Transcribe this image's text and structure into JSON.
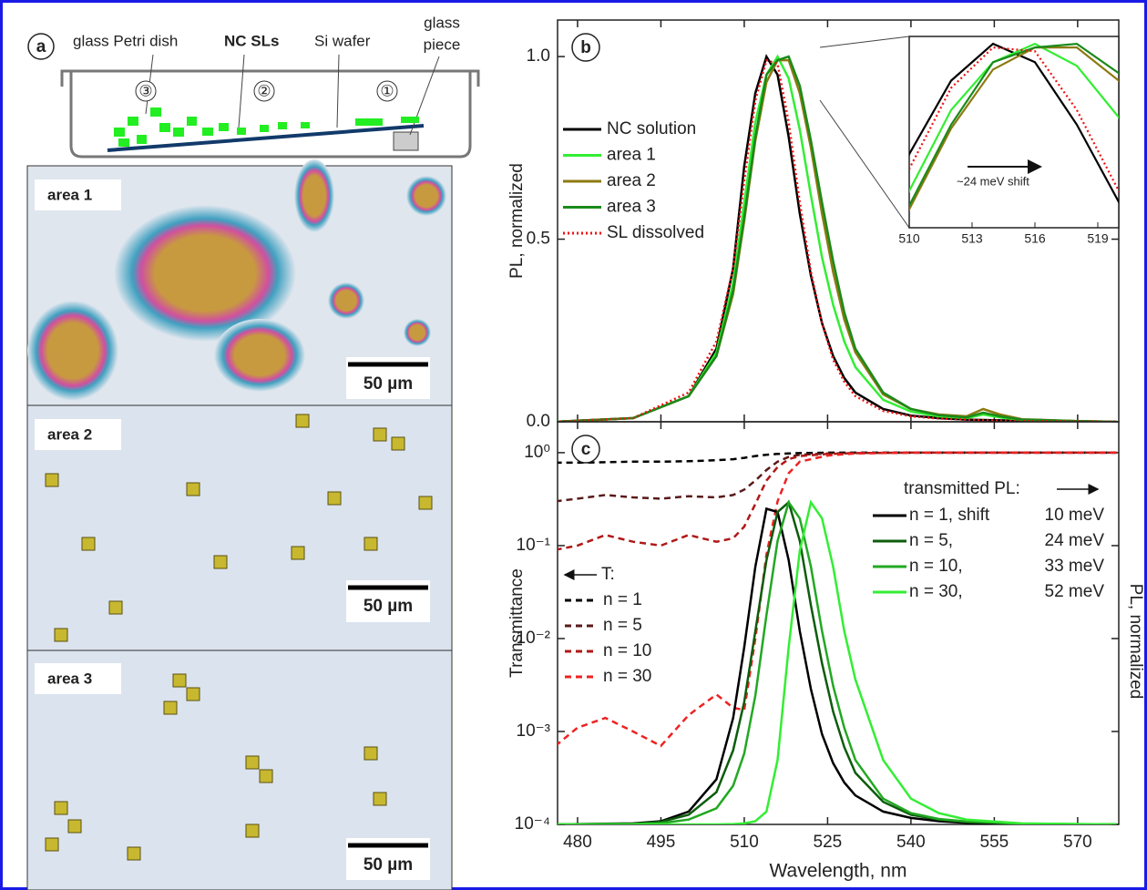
{
  "panel_a": {
    "label": "a",
    "schematic": {
      "glass_petri_dish": "glass Petri dish",
      "nc_sls": "NC SLs",
      "si_wafer": "Si wafer",
      "glass_piece": [
        "glass",
        "piece"
      ],
      "zones": [
        "③",
        "②",
        "①"
      ]
    },
    "images": [
      {
        "label": "area 1",
        "scale_bar": "50 µm"
      },
      {
        "label": "area 2",
        "scale_bar": "50 µm"
      },
      {
        "label": "area 3",
        "scale_bar": "50 µm"
      }
    ]
  },
  "chart_data": [
    {
      "type": "line",
      "panel": "b",
      "ylabel": "PL, normalized",
      "xlim": [
        476.4,
        577.4
      ],
      "xticks": [
        480,
        495,
        510,
        525,
        540,
        555,
        570
      ],
      "ylim": [
        0,
        1.1
      ],
      "yticks": [
        {
          "value": 0,
          "label": "0.0"
        },
        0.5,
        {
          "value": 1,
          "label": "1.0"
        }
      ],
      "legend": "upper left",
      "x": [
        476,
        490,
        500,
        505,
        508,
        510,
        512,
        514,
        516,
        518,
        520,
        522,
        524,
        526,
        528,
        530,
        535,
        540,
        545,
        550,
        553,
        556,
        560,
        570,
        577
      ],
      "series": [
        {
          "name": "NC solution",
          "color": "#000000",
          "dash": "solid",
          "values": [
            0,
            0.01,
            0.07,
            0.2,
            0.42,
            0.7,
            0.9,
            1.0,
            0.95,
            0.78,
            0.57,
            0.4,
            0.27,
            0.18,
            0.12,
            0.08,
            0.035,
            0.017,
            0.01,
            0.006,
            0.005,
            0.004,
            0.003,
            0.001,
            0
          ]
        },
        {
          "name": "area 1",
          "color": "#33ee33",
          "dash": "solid",
          "values": [
            0,
            0.01,
            0.07,
            0.19,
            0.38,
            0.6,
            0.82,
            0.95,
            1.0,
            0.94,
            0.8,
            0.62,
            0.45,
            0.32,
            0.22,
            0.15,
            0.06,
            0.028,
            0.015,
            0.01,
            0.02,
            0.012,
            0.005,
            0.002,
            0
          ]
        },
        {
          "name": "area 2",
          "color": "#8c7a10",
          "dash": "solid",
          "values": [
            0,
            0.01,
            0.07,
            0.18,
            0.35,
            0.55,
            0.77,
            0.93,
            0.99,
            0.99,
            0.9,
            0.75,
            0.57,
            0.41,
            0.28,
            0.19,
            0.075,
            0.035,
            0.02,
            0.015,
            0.035,
            0.02,
            0.007,
            0.002,
            0
          ]
        },
        {
          "name": "area 3",
          "color": "#1a8a1a",
          "dash": "solid",
          "values": [
            0,
            0.01,
            0.07,
            0.18,
            0.36,
            0.56,
            0.78,
            0.95,
            0.99,
            1.0,
            0.92,
            0.77,
            0.6,
            0.44,
            0.3,
            0.2,
            0.08,
            0.035,
            0.018,
            0.012,
            0.025,
            0.015,
            0.006,
            0.002,
            0
          ]
        },
        {
          "name": "SL dissolved",
          "color": "#ee1111",
          "dash": "dotted",
          "values": [
            0,
            0.01,
            0.08,
            0.22,
            0.42,
            0.66,
            0.88,
            0.99,
            0.98,
            0.82,
            0.6,
            0.41,
            0.27,
            0.17,
            0.11,
            0.07,
            0.03,
            0.015,
            0.009,
            0.006,
            0.004,
            0.003,
            0.002,
            0.001,
            0
          ]
        }
      ],
      "inset": {
        "xlim": [
          510,
          520
        ],
        "xticks": [
          510,
          513,
          516,
          519
        ],
        "ylim": [
          0.5,
          1.02
        ],
        "annotation": "~24 meV shift"
      }
    },
    {
      "type": "line",
      "panel": "c",
      "xlabel": "Wavelength, nm",
      "ylabel": "Transmittance",
      "y2label": "PL, normalized",
      "log_y": true,
      "xlim": [
        476.4,
        577.4
      ],
      "xticks": [
        480,
        495,
        510,
        525,
        540,
        555,
        570
      ],
      "ylim": [
        0.0001,
        2.15
      ],
      "yticks": [
        {
          "value": 0.0001,
          "label": "10⁻⁴"
        },
        {
          "value": 0.001,
          "label": "10⁻³"
        },
        {
          "value": 0.01,
          "label": "10⁻²"
        },
        {
          "value": 0.1,
          "label": "10⁻¹"
        },
        {
          "value": 1,
          "label": "10⁰"
        }
      ],
      "y2lim": [
        0,
        1.25
      ],
      "t_legend_title": "T:",
      "pl_legend_title": "transmitted PL:",
      "series": [
        {
          "name": "n = 1",
          "color": "#000000",
          "dash": "dashed",
          "x": [
            476,
            480,
            485,
            490,
            495,
            500,
            505,
            508,
            510,
            512,
            514,
            516,
            518,
            520,
            525,
            530,
            540,
            577
          ],
          "values": [
            0.78,
            0.78,
            0.79,
            0.8,
            0.8,
            0.81,
            0.83,
            0.85,
            0.88,
            0.92,
            0.95,
            0.97,
            0.98,
            0.99,
            1.0,
            1.0,
            1.0,
            1.0
          ]
        },
        {
          "name": "n = 5",
          "color": "#5a1a1a",
          "dash": "dashed",
          "x": [
            476,
            480,
            485,
            490,
            495,
            500,
            505,
            508,
            510,
            512,
            514,
            516,
            518,
            520,
            525,
            530,
            540,
            577
          ],
          "values": [
            0.3,
            0.32,
            0.35,
            0.33,
            0.32,
            0.34,
            0.33,
            0.35,
            0.4,
            0.5,
            0.65,
            0.8,
            0.9,
            0.95,
            0.98,
            0.99,
            1.0,
            1.0
          ]
        },
        {
          "name": "n = 10",
          "color": "#b01818",
          "dash": "dashed",
          "x": [
            476,
            480,
            485,
            490,
            495,
            500,
            505,
            508,
            510,
            512,
            514,
            516,
            518,
            520,
            525,
            530,
            540,
            577
          ],
          "values": [
            0.09,
            0.1,
            0.13,
            0.11,
            0.1,
            0.13,
            0.11,
            0.12,
            0.16,
            0.28,
            0.5,
            0.7,
            0.85,
            0.92,
            0.97,
            0.99,
            1.0,
            1.0
          ]
        },
        {
          "name": "n = 30",
          "color": "#ee2222",
          "dash": "dashed",
          "x": [
            476,
            480,
            485,
            490,
            495,
            500,
            505,
            508,
            510,
            512,
            514,
            516,
            518,
            520,
            525,
            530,
            540,
            577
          ],
          "values": [
            0.0007,
            0.0011,
            0.0014,
            0.001,
            0.0007,
            0.0015,
            0.0025,
            0.0018,
            0.0017,
            0.01,
            0.08,
            0.3,
            0.6,
            0.8,
            0.93,
            0.98,
            1.0,
            1.0
          ]
        },
        {
          "name": "n = 1, shift",
          "shift": "10 meV",
          "axis": "y2",
          "color": "#000000",
          "dash": "solid",
          "x": [
            476,
            490,
            495,
            500,
            505,
            508,
            510,
            512,
            514,
            516,
            518,
            520,
            522,
            524,
            526,
            528,
            530,
            535,
            540,
            545,
            550,
            560,
            577
          ],
          "values": [
            0,
            0.003,
            0.01,
            0.04,
            0.14,
            0.33,
            0.55,
            0.8,
            0.98,
            0.97,
            0.82,
            0.6,
            0.42,
            0.28,
            0.19,
            0.13,
            0.09,
            0.04,
            0.02,
            0.01,
            0.005,
            0.001,
            0
          ]
        },
        {
          "name": "n = 5,",
          "shift": "24 meV",
          "axis": "y2",
          "color": "#0c5c0c",
          "dash": "solid",
          "x": [
            476,
            490,
            495,
            500,
            505,
            508,
            510,
            512,
            514,
            516,
            518,
            520,
            522,
            524,
            526,
            528,
            530,
            535,
            540,
            545,
            550,
            560,
            577
          ],
          "values": [
            0,
            0.002,
            0.008,
            0.03,
            0.1,
            0.23,
            0.38,
            0.6,
            0.82,
            0.97,
            1.0,
            0.88,
            0.68,
            0.5,
            0.35,
            0.24,
            0.16,
            0.07,
            0.03,
            0.015,
            0.008,
            0.002,
            0
          ]
        },
        {
          "name": "n = 10,",
          "shift": "33 meV",
          "axis": "y2",
          "color": "#22a822",
          "dash": "solid",
          "x": [
            476,
            490,
            495,
            500,
            505,
            508,
            510,
            512,
            514,
            516,
            518,
            520,
            522,
            524,
            526,
            528,
            530,
            535,
            540,
            545,
            550,
            560,
            577
          ],
          "values": [
            0,
            0.001,
            0.004,
            0.015,
            0.05,
            0.12,
            0.22,
            0.4,
            0.65,
            0.88,
            1.0,
            0.95,
            0.8,
            0.6,
            0.43,
            0.3,
            0.2,
            0.08,
            0.035,
            0.017,
            0.009,
            0.002,
            0
          ]
        },
        {
          "name": "n = 30,",
          "shift": "52 meV",
          "axis": "y2",
          "color": "#33ee33",
          "dash": "solid",
          "x": [
            476,
            490,
            495,
            500,
            505,
            508,
            510,
            512,
            514,
            516,
            518,
            520,
            522,
            524,
            526,
            528,
            530,
            535,
            540,
            545,
            550,
            560,
            577
          ],
          "values": [
            0,
            0,
            0,
            0,
            0,
            0.001,
            0.003,
            0.01,
            0.04,
            0.2,
            0.55,
            0.85,
            1.0,
            0.95,
            0.8,
            0.6,
            0.45,
            0.2,
            0.08,
            0.035,
            0.015,
            0.003,
            0
          ]
        }
      ]
    }
  ]
}
